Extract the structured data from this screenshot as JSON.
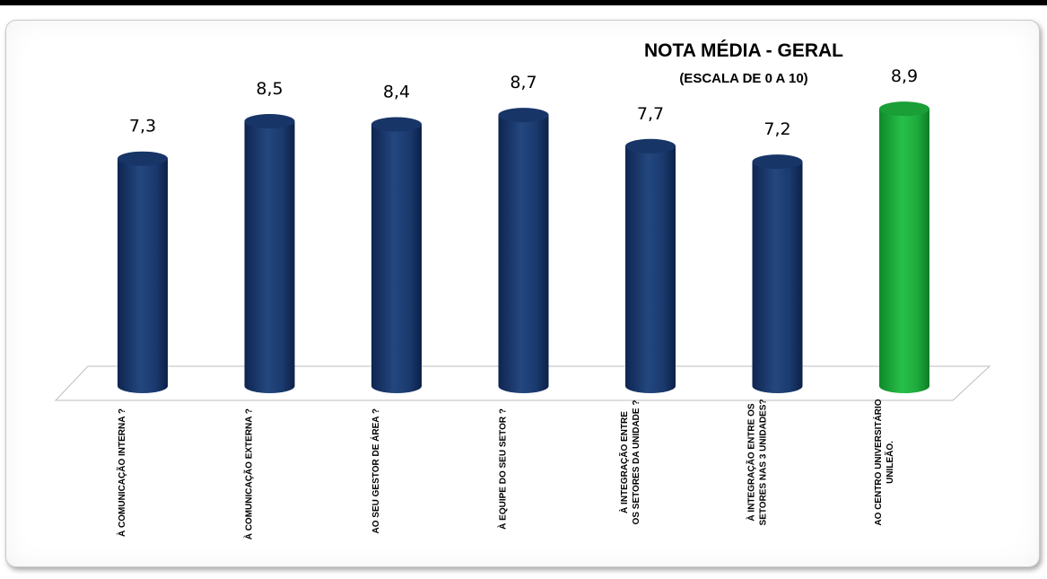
{
  "chart_data": {
    "type": "bar",
    "title": "NOTA MÉDIA - GERAL",
    "subtitle": "(ESCALA DE 0 A 10)",
    "categories": [
      [
        "À COMUNICAÇÃO INTERNA ?"
      ],
      [
        "À COMUNICAÇÃO EXTERNA ?"
      ],
      [
        "AO SEU GESTOR DE ÁREA ?"
      ],
      [
        "À  EQUIPE DO SEU SETOR ?"
      ],
      [
        "À INTEGRAÇÃO ENTRE",
        "OS SETORES DA UNIDADE ?"
      ],
      [
        "À INTEGRAÇÃO ENTRE OS",
        "SETORES NAS 3 UNIDADES?"
      ],
      [
        "AO CENTRO UNIVERSITÁRIO",
        "UNILEÃO."
      ]
    ],
    "values": [
      7.3,
      8.5,
      8.4,
      8.7,
      7.7,
      7.2,
      8.9
    ],
    "value_labels": [
      "7,3",
      "8,5",
      "8,4",
      "8,7",
      "7,7",
      "7,2",
      "8,9"
    ],
    "bar_colors": [
      "#1f3f7a",
      "#1f3f7a",
      "#1f3f7a",
      "#1f3f7a",
      "#1f3f7a",
      "#1f3f7a",
      "#1fae3c"
    ],
    "ylim": [
      0,
      10
    ],
    "grid": false,
    "legend": "none",
    "style": "3d-cylinder"
  }
}
